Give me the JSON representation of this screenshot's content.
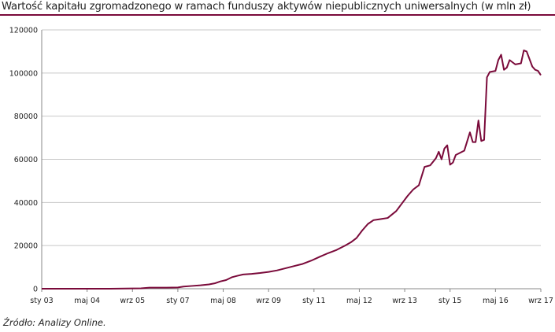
{
  "title": "Wartość kapitału zgromadzonego w ramach funduszy aktywów niepublicznych uniwersalnych (w mln zł)",
  "source": "Źródło: Analizy Online.",
  "colors": {
    "line": "#7a0a3a",
    "grid": "#c8c8c8",
    "axis": "#888888",
    "title_rule": "#7a0a3a"
  },
  "chart_data": {
    "type": "line",
    "title": "Wartość kapitału zgromadzonego w ramach funduszy aktywów niepublicznych uniwersalnych (w mln zł)",
    "xlabel": "",
    "ylabel": "",
    "ylim": [
      0,
      120000
    ],
    "y_ticks": [
      0,
      20000,
      40000,
      60000,
      80000,
      100000,
      120000
    ],
    "y_tick_labels": [
      "0",
      "20000",
      "40000",
      "60000",
      "80000",
      "100000",
      "120000"
    ],
    "x_range": [
      "2003-01",
      "2017-09"
    ],
    "x_ticks": [
      "2003-01",
      "2004-05",
      "2005-09",
      "2007-01",
      "2008-05",
      "2009-09",
      "2011-01",
      "2012-05",
      "2013-09",
      "2015-01",
      "2016-05",
      "2017-09"
    ],
    "x_tick_labels": [
      "sty 03",
      "maj 04",
      "wrz 05",
      "sty 07",
      "maj 08",
      "wrz 09",
      "sty 11",
      "maj 12",
      "wrz 13",
      "sty 15",
      "maj 16",
      "wrz 17"
    ],
    "grid": {
      "horizontal": true,
      "vertical": false
    },
    "series": [
      {
        "color": "#7a0a3a",
        "points": [
          [
            "2003-01",
            0
          ],
          [
            "2004-01",
            0
          ],
          [
            "2005-01",
            0
          ],
          [
            "2005-12",
            200
          ],
          [
            "2006-03",
            500
          ],
          [
            "2006-09",
            500
          ],
          [
            "2007-01",
            600
          ],
          [
            "2007-03",
            1000
          ],
          [
            "2007-06",
            1300
          ],
          [
            "2007-09",
            1600
          ],
          [
            "2007-12",
            2000
          ],
          [
            "2008-02",
            2500
          ],
          [
            "2008-04",
            3400
          ],
          [
            "2008-06",
            4000
          ],
          [
            "2008-08",
            5300
          ],
          [
            "2008-10",
            6000
          ],
          [
            "2008-12",
            6600
          ],
          [
            "2009-03",
            6900
          ],
          [
            "2009-06",
            7300
          ],
          [
            "2009-09",
            7800
          ],
          [
            "2009-12",
            8500
          ],
          [
            "2010-03",
            9500
          ],
          [
            "2010-06",
            10500
          ],
          [
            "2010-09",
            11500
          ],
          [
            "2010-12",
            13000
          ],
          [
            "2011-03",
            14800
          ],
          [
            "2011-06",
            16500
          ],
          [
            "2011-09",
            18000
          ],
          [
            "2011-12",
            20000
          ],
          [
            "2012-02",
            21500
          ],
          [
            "2012-04",
            23500
          ],
          [
            "2012-06",
            27000
          ],
          [
            "2012-08",
            30000
          ],
          [
            "2012-10",
            31800
          ],
          [
            "2012-12",
            32200
          ],
          [
            "2013-03",
            32800
          ],
          [
            "2013-06",
            36000
          ],
          [
            "2013-08",
            39500
          ],
          [
            "2013-10",
            43000
          ],
          [
            "2013-12",
            46000
          ],
          [
            "2014-02",
            48000
          ],
          [
            "2014-04",
            56500
          ],
          [
            "2014-06",
            57200
          ],
          [
            "2014-08",
            60500
          ],
          [
            "2014-09",
            63500
          ],
          [
            "2014-10",
            60000
          ],
          [
            "2014-11",
            65000
          ],
          [
            "2014-12",
            66500
          ],
          [
            "2015-01",
            57500
          ],
          [
            "2015-02",
            58500
          ],
          [
            "2015-03",
            62000
          ],
          [
            "2015-06",
            64000
          ],
          [
            "2015-08",
            72500
          ],
          [
            "2015-09",
            68000
          ],
          [
            "2015-10",
            68000
          ],
          [
            "2015-11",
            78000
          ],
          [
            "2015-12",
            68500
          ],
          [
            "2016-01",
            69000
          ],
          [
            "2016-02",
            98000
          ],
          [
            "2016-03",
            100500
          ],
          [
            "2016-05",
            101000
          ],
          [
            "2016-06",
            106000
          ],
          [
            "2016-07",
            108500
          ],
          [
            "2016-08",
            101500
          ],
          [
            "2016-09",
            102500
          ],
          [
            "2016-10",
            106000
          ],
          [
            "2016-12",
            104000
          ],
          [
            "2017-02",
            104500
          ],
          [
            "2017-03",
            110500
          ],
          [
            "2017-04",
            110000
          ],
          [
            "2017-06",
            103000
          ],
          [
            "2017-07",
            101500
          ],
          [
            "2017-08",
            101000
          ],
          [
            "2017-09",
            99000
          ]
        ]
      }
    ]
  }
}
